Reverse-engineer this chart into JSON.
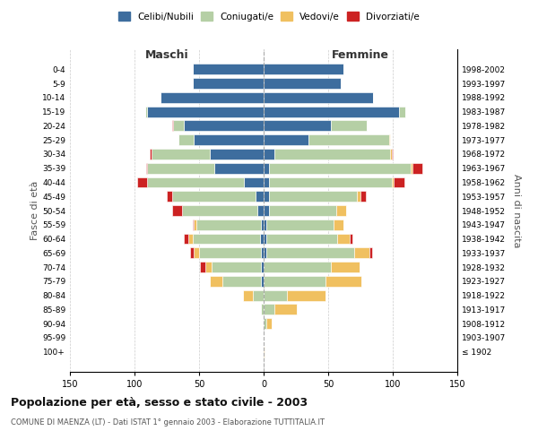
{
  "age_groups": [
    "100+",
    "95-99",
    "90-94",
    "85-89",
    "80-84",
    "75-79",
    "70-74",
    "65-69",
    "60-64",
    "55-59",
    "50-54",
    "45-49",
    "40-44",
    "35-39",
    "30-34",
    "25-29",
    "20-24",
    "15-19",
    "10-14",
    "5-9",
    "0-4"
  ],
  "birth_years": [
    "≤ 1902",
    "1903-1907",
    "1908-1912",
    "1913-1917",
    "1918-1922",
    "1923-1927",
    "1928-1932",
    "1933-1937",
    "1938-1942",
    "1943-1947",
    "1948-1952",
    "1953-1957",
    "1958-1962",
    "1963-1967",
    "1968-1972",
    "1973-1977",
    "1978-1982",
    "1983-1987",
    "1988-1992",
    "1993-1997",
    "1998-2002"
  ],
  "colors": {
    "celibe": "#3d6d9e",
    "coniugato": "#b5cfa5",
    "vedovo": "#f0c060",
    "divorziato": "#cc2222"
  },
  "m_celibe": [
    0,
    0,
    0,
    0,
    0,
    2,
    2,
    2,
    3,
    2,
    5,
    6,
    15,
    38,
    42,
    54,
    62,
    90,
    80,
    55,
    55
  ],
  "m_coniugato": [
    0,
    0,
    0,
    2,
    8,
    30,
    38,
    48,
    52,
    50,
    58,
    65,
    75,
    52,
    45,
    12,
    8,
    2,
    0,
    0,
    0
  ],
  "m_vedovo": [
    0,
    0,
    0,
    0,
    8,
    10,
    5,
    4,
    3,
    2,
    0,
    0,
    0,
    0,
    0,
    0,
    0,
    0,
    0,
    0,
    0
  ],
  "m_divorziato": [
    0,
    0,
    0,
    0,
    0,
    0,
    4,
    3,
    4,
    1,
    8,
    4,
    8,
    1,
    1,
    0,
    1,
    0,
    0,
    0,
    0
  ],
  "f_nubile": [
    0,
    0,
    0,
    0,
    0,
    0,
    0,
    2,
    2,
    2,
    4,
    4,
    4,
    4,
    8,
    35,
    52,
    105,
    85,
    60,
    62
  ],
  "f_coniugata": [
    0,
    0,
    2,
    8,
    18,
    48,
    52,
    68,
    55,
    52,
    52,
    68,
    95,
    110,
    90,
    62,
    28,
    5,
    0,
    0,
    0
  ],
  "f_vedova": [
    1,
    0,
    4,
    18,
    30,
    28,
    22,
    12,
    10,
    8,
    8,
    3,
    2,
    1,
    1,
    1,
    0,
    0,
    0,
    0,
    0
  ],
  "f_divorziata": [
    0,
    0,
    0,
    0,
    0,
    0,
    0,
    2,
    2,
    0,
    0,
    4,
    8,
    8,
    1,
    0,
    0,
    0,
    0,
    0,
    0
  ],
  "title": "Popolazione per età, sesso e stato civile - 2003",
  "subtitle": "COMUNE DI MAENZA (LT) - Dati ISTAT 1° gennaio 2003 - Elaborazione TUTTITALIA.IT",
  "xlabel_left": "Maschi",
  "xlabel_right": "Femmine",
  "ylabel_left": "Fasce di età",
  "ylabel_right": "Anni di nascita",
  "xlim": 150,
  "background_color": "#ffffff",
  "grid_color": "#cccccc"
}
